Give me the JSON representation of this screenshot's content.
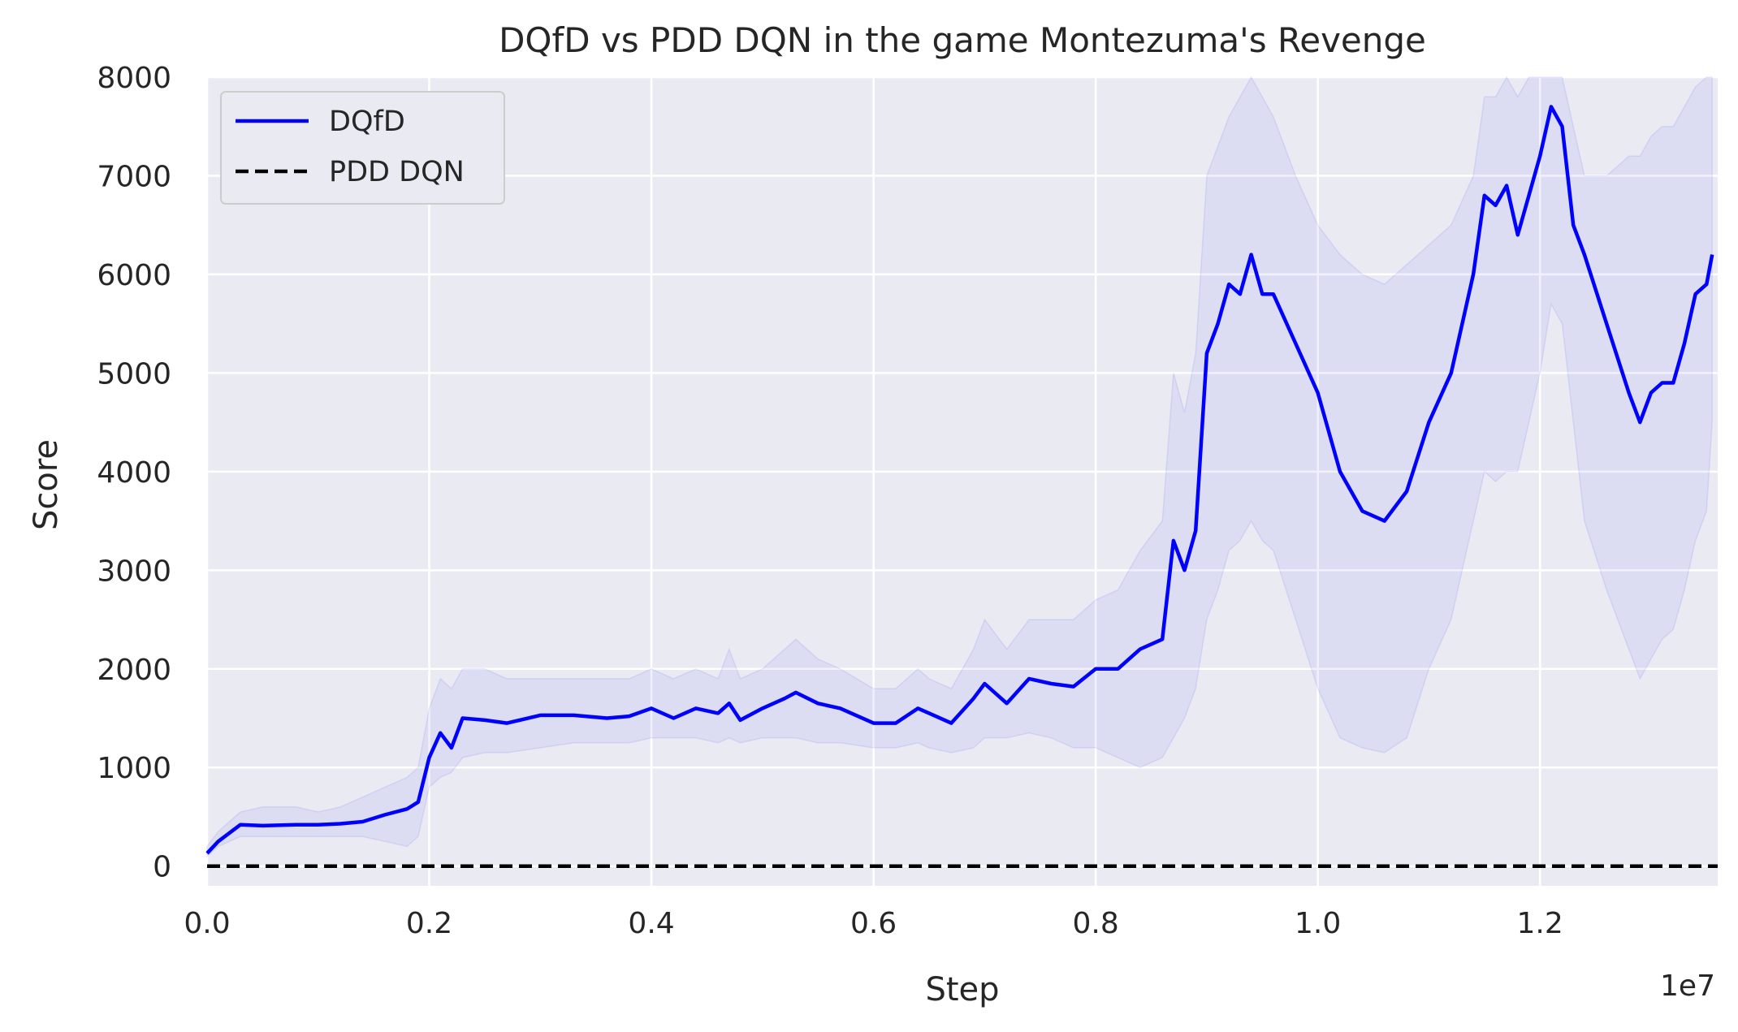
{
  "chart_data": {
    "type": "line",
    "title": "DQfD vs PDD DQN in the game Montezuma's Revenge",
    "xlabel": "Step",
    "ylabel": "Score",
    "x_offset_label": "1e7",
    "xlim": [
      0,
      1.36
    ],
    "ylim": [
      -200,
      8000
    ],
    "x_ticks": [
      0.0,
      0.2,
      0.4,
      0.6,
      0.8,
      1.0,
      1.2
    ],
    "x_tick_labels": [
      "0.0",
      "0.2",
      "0.4",
      "0.6",
      "0.8",
      "1.0",
      "1.2"
    ],
    "y_ticks": [
      0,
      1000,
      2000,
      3000,
      4000,
      5000,
      6000,
      7000,
      8000
    ],
    "y_tick_labels": [
      "0",
      "1000",
      "2000",
      "3000",
      "4000",
      "5000",
      "6000",
      "7000",
      "8000"
    ],
    "grid": true,
    "legend_position": "upper-left",
    "series": [
      {
        "name": "DQfD",
        "color": "#0000ff",
        "style": "solid",
        "x": [
          0.0,
          0.01,
          0.03,
          0.05,
          0.08,
          0.1,
          0.12,
          0.14,
          0.16,
          0.18,
          0.19,
          0.2,
          0.21,
          0.22,
          0.23,
          0.25,
          0.27,
          0.3,
          0.33,
          0.36,
          0.38,
          0.4,
          0.42,
          0.44,
          0.46,
          0.47,
          0.48,
          0.5,
          0.52,
          0.53,
          0.55,
          0.57,
          0.6,
          0.62,
          0.64,
          0.65,
          0.67,
          0.69,
          0.7,
          0.72,
          0.74,
          0.76,
          0.78,
          0.8,
          0.82,
          0.84,
          0.86,
          0.87,
          0.88,
          0.89,
          0.9,
          0.91,
          0.92,
          0.93,
          0.94,
          0.95,
          0.96,
          0.98,
          1.0,
          1.02,
          1.04,
          1.06,
          1.08,
          1.1,
          1.12,
          1.14,
          1.15,
          1.16,
          1.17,
          1.18,
          1.19,
          1.2,
          1.21,
          1.22,
          1.23,
          1.24,
          1.26,
          1.28,
          1.29,
          1.3,
          1.31,
          1.32,
          1.33,
          1.34,
          1.35,
          1.355
        ],
        "y": [
          130,
          250,
          420,
          410,
          420,
          420,
          430,
          450,
          520,
          580,
          650,
          1100,
          1350,
          1200,
          1500,
          1480,
          1450,
          1530,
          1530,
          1500,
          1520,
          1600,
          1500,
          1600,
          1550,
          1650,
          1480,
          1600,
          1700,
          1760,
          1650,
          1600,
          1450,
          1450,
          1600,
          1550,
          1450,
          1700,
          1850,
          1650,
          1900,
          1850,
          1820,
          2000,
          2000,
          2200,
          2300,
          3300,
          3000,
          3400,
          5200,
          5500,
          5900,
          5800,
          6200,
          5800,
          5800,
          5300,
          4800,
          4000,
          3600,
          3500,
          3800,
          4500,
          5000,
          6000,
          6800,
          6700,
          6900,
          6400,
          6800,
          7200,
          7700,
          7500,
          6500,
          6200,
          5500,
          4800,
          4500,
          4800,
          4900,
          4900,
          5300,
          5800,
          5900,
          6200
        ],
        "band_lower": [
          100,
          200,
          300,
          300,
          300,
          300,
          300,
          300,
          250,
          200,
          300,
          800,
          900,
          950,
          1100,
          1150,
          1150,
          1200,
          1250,
          1250,
          1250,
          1300,
          1300,
          1300,
          1250,
          1300,
          1250,
          1300,
          1300,
          1300,
          1250,
          1250,
          1200,
          1200,
          1250,
          1200,
          1150,
          1200,
          1300,
          1300,
          1350,
          1300,
          1200,
          1200,
          1100,
          1000,
          1100,
          1300,
          1500,
          1800,
          2500,
          2800,
          3200,
          3300,
          3500,
          3300,
          3200,
          2500,
          1800,
          1300,
          1200,
          1150,
          1300,
          2000,
          2500,
          3500,
          4000,
          3900,
          4000,
          4000,
          4500,
          5000,
          5700,
          5500,
          4500,
          3500,
          2800,
          2200,
          1900,
          2100,
          2300,
          2400,
          2800,
          3300,
          3600,
          4500
        ],
        "band_upper": [
          200,
          350,
          550,
          600,
          600,
          550,
          600,
          700,
          800,
          900,
          1000,
          1600,
          1900,
          1800,
          2000,
          2000,
          1900,
          1900,
          1900,
          1900,
          1900,
          2000,
          1900,
          2000,
          1900,
          2200,
          1900,
          2000,
          2200,
          2300,
          2100,
          2000,
          1800,
          1800,
          2000,
          1900,
          1800,
          2200,
          2500,
          2200,
          2500,
          2500,
          2500,
          2700,
          2800,
          3200,
          3500,
          5000,
          4600,
          5200,
          7000,
          7300,
          7600,
          7800,
          8000,
          7800,
          7600,
          7000,
          6500,
          6200,
          6000,
          5900,
          6100,
          6300,
          6500,
          7000,
          7800,
          7800,
          8000,
          7800,
          8000,
          8000,
          8000,
          8000,
          7500,
          7000,
          7000,
          7200,
          7200,
          7400,
          7500,
          7500,
          7700,
          7900,
          8000,
          8000
        ]
      },
      {
        "name": "PDD DQN",
        "color": "#000000",
        "style": "dashed",
        "x": [
          0.0,
          1.36
        ],
        "y": [
          0,
          0
        ]
      }
    ]
  }
}
